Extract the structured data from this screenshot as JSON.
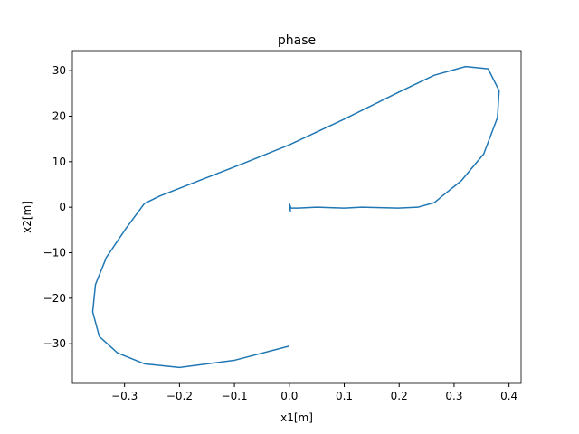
{
  "chart_data": {
    "type": "line",
    "title": "phase",
    "x_label": "x1[m]",
    "y_label": "x2[m]",
    "x": [
      0,
      -0.099,
      -0.2,
      -0.264,
      -0.313,
      -0.346,
      -0.358,
      -0.353,
      -0.333,
      -0.297,
      -0.264,
      -0.237,
      -0.165,
      -0.082,
      0,
      0.099,
      0.198,
      0.264,
      0.321,
      0.362,
      0.382,
      0.379,
      0.354,
      0.313,
      0.28,
      0.264,
      0.234,
      0.198,
      0.132,
      0.099,
      0.05,
      0.016,
      0.003,
      0,
      0.002,
      0
    ],
    "series": [
      {
        "color": "#1f77b4",
        "values": [
          -30.5,
          -33.6,
          -35.2,
          -34.4,
          -32,
          -28.4,
          -23,
          -17,
          -11,
          -4.6,
          0.8,
          2.4,
          5.8,
          9.7,
          13.7,
          19.3,
          25.2,
          29,
          30.9,
          30.4,
          25.6,
          19.7,
          11.7,
          5.8,
          2.6,
          1,
          0,
          -0.2,
          0,
          -0.2,
          0,
          -0.2,
          -0.2,
          0.8,
          -0.8,
          0
        ]
      }
    ],
    "xlim": [
      -0.395,
      0.422
    ],
    "ylim": [
      -38.7,
      34.4
    ],
    "xticks": [
      {
        "value": -0.3,
        "label": "−0.3"
      },
      {
        "value": -0.2,
        "label": "−0.2"
      },
      {
        "value": -0.1,
        "label": "−0.1"
      },
      {
        "value": 0,
        "label": "0.0"
      },
      0.1,
      0.2,
      0.3,
      0.4
    ],
    "yticks": [
      {
        "value": -30,
        "label": "−30"
      },
      {
        "value": -20,
        "label": "−20"
      },
      {
        "value": -10,
        "label": "−10"
      },
      0,
      10,
      20,
      30
    ]
  }
}
